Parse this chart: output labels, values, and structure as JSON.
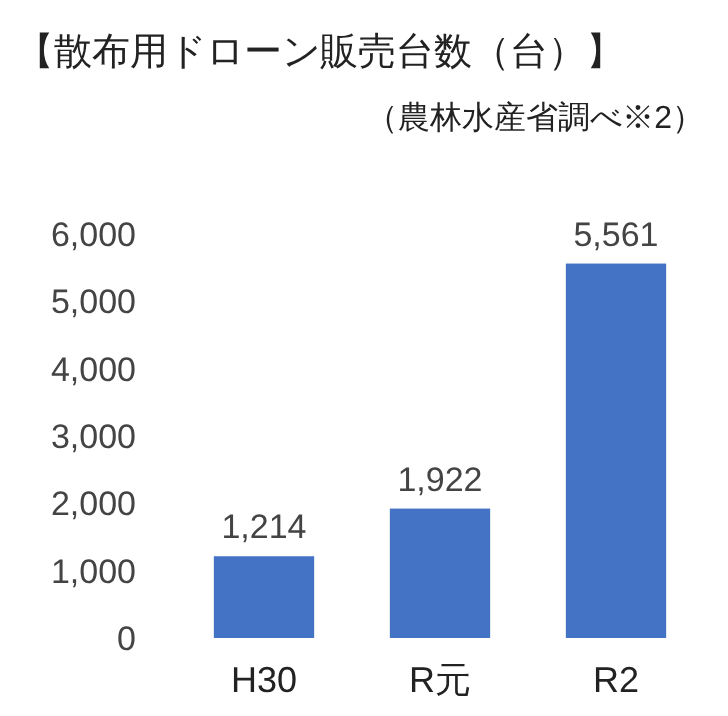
{
  "chart_data": {
    "type": "bar",
    "title": "【散布用ドローン販売台数（台）】",
    "subtitle": "（農林水産省調べ※2）",
    "categories": [
      "H30",
      "R元",
      "R2"
    ],
    "series": [
      {
        "color": "#4472c4",
        "values": [
          1214,
          1922,
          5561
        ]
      }
    ],
    "value_labels": [
      "1,214",
      "1,922",
      "5,561"
    ],
    "ylim": [
      0,
      6000
    ],
    "yticks": [
      {
        "value": 0,
        "label": "0"
      },
      {
        "value": 1000,
        "label": "1,000"
      },
      {
        "value": 2000,
        "label": "2,000"
      },
      {
        "value": 3000,
        "label": "3,000"
      },
      {
        "value": 4000,
        "label": "4,000"
      },
      {
        "value": 5000,
        "label": "5,000"
      },
      {
        "value": 6000,
        "label": "6,000"
      }
    ],
    "grid": false
  }
}
